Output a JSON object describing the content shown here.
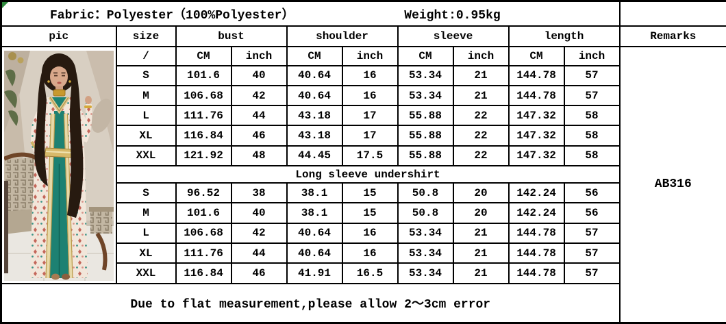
{
  "title_row": {
    "fabric": "Fabric：Polyester（100%Polyester）",
    "weight": "Weight:0.95kg"
  },
  "header": {
    "pic": "pic",
    "size": "size",
    "bust": "bust",
    "shoulder": "shoulder",
    "sleeve": "sleeve",
    "length": "length",
    "remarks": "Remarks"
  },
  "subheader": {
    "size_placeholder": "/",
    "cm": "CM",
    "inch": "inch"
  },
  "size_chart": {
    "type": "table",
    "columns": [
      "size",
      "bust CM",
      "bust inch",
      "shoulder CM",
      "shoulder inch",
      "sleeve CM",
      "sleeve inch",
      "length CM",
      "length inch"
    ],
    "main_rows": [
      [
        "S",
        "101.6",
        "40",
        "40.64",
        "16",
        "53.34",
        "21",
        "144.78",
        "57"
      ],
      [
        "M",
        "106.68",
        "42",
        "40.64",
        "16",
        "53.34",
        "21",
        "144.78",
        "57"
      ],
      [
        "L",
        "111.76",
        "44",
        "43.18",
        "17",
        "55.88",
        "22",
        "147.32",
        "58"
      ],
      [
        "XL",
        "116.84",
        "46",
        "43.18",
        "17",
        "55.88",
        "22",
        "147.32",
        "58"
      ],
      [
        "XXL",
        "121.92",
        "48",
        "44.45",
        "17.5",
        "55.88",
        "22",
        "147.32",
        "58"
      ]
    ],
    "divider_label": "Long sleeve undershirt",
    "undershirt_rows": [
      [
        "S",
        "96.52",
        "38",
        "38.1",
        "15",
        "50.8",
        "20",
        "142.24",
        "56"
      ],
      [
        "M",
        "101.6",
        "40",
        "38.1",
        "15",
        "50.8",
        "20",
        "142.24",
        "56"
      ],
      [
        "L",
        "106.68",
        "42",
        "40.64",
        "16",
        "53.34",
        "21",
        "144.78",
        "57"
      ],
      [
        "XL",
        "111.76",
        "44",
        "40.64",
        "16",
        "53.34",
        "21",
        "144.78",
        "57"
      ],
      [
        "XXL",
        "116.84",
        "46",
        "41.91",
        "16.5",
        "53.34",
        "21",
        "144.78",
        "57"
      ]
    ]
  },
  "remarks_value": "AB316",
  "note": "Due to flat measurement,please allow 2～3cm error",
  "photo": {
    "alt": "Model wearing a pink printed kaftan with teal inner dress and gold trim",
    "colors": {
      "teal_dress": "#1d8172",
      "gold_trim": "#d6b96a",
      "print_base": "#f2e6da",
      "print_red": "#c4675a",
      "wall": "#d8cfc2",
      "hair": "#271a10"
    }
  }
}
